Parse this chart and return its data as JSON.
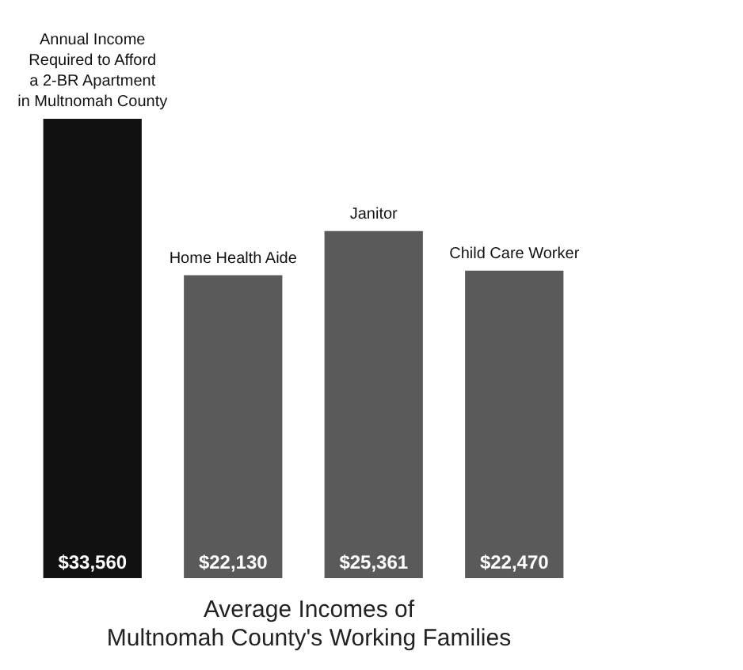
{
  "chart_data": {
    "type": "bar",
    "xlabel": "Average Incomes of\nMultnomah County's Working Families",
    "categories": [
      "Annual Income\nRequired to Afford\na 2-BR Apartment\nin Multnomah County",
      "Home Health Aide",
      "Janitor",
      "Child Care Worker"
    ],
    "values": [
      33560,
      22130,
      25361,
      22470
    ],
    "colors": [
      "#111111",
      "#5a5a5a",
      "#5a5a5a",
      "#5a5a5a"
    ],
    "value_labels": [
      "$33,560",
      "$22,130",
      "$25,361",
      "$22,470"
    ]
  }
}
